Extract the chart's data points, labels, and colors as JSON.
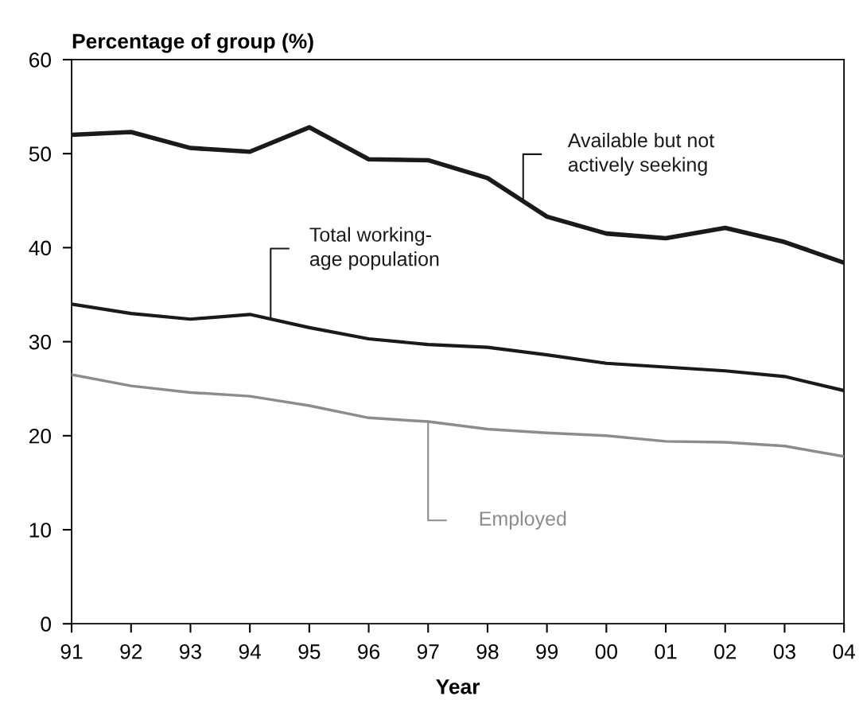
{
  "chart_data": {
    "type": "line",
    "xlabel": "Year",
    "ylabel": "Percentage of group (%)",
    "categories": [
      "91",
      "92",
      "93",
      "94",
      "95",
      "96",
      "97",
      "98",
      "99",
      "00",
      "01",
      "02",
      "03",
      "04"
    ],
    "series": [
      {
        "name": "Available but not\nactively seeking",
        "color": "#1a1a1a",
        "values": [
          52,
          52.3,
          50.6,
          50.2,
          52.8,
          49.4,
          49.3,
          47.4,
          43.3,
          41.5,
          41.0,
          42.1,
          40.6,
          38.4
        ]
      },
      {
        "name": "Total working-\nage population",
        "color": "#1a1a1a",
        "values": [
          34,
          33,
          32.4,
          32.9,
          31.5,
          30.3,
          29.7,
          29.4,
          28.6,
          27.7,
          27.3,
          26.9,
          26.3,
          24.8
        ]
      },
      {
        "name": "Employed",
        "color": "#8c8c8c",
        "values": [
          26.5,
          25.3,
          24.6,
          24.2,
          23.2,
          21.9,
          21.5,
          20.7,
          20.3,
          20.0,
          19.4,
          19.3,
          18.9,
          17.8
        ]
      }
    ],
    "ylim": [
      0,
      60
    ],
    "yticks": [
      0,
      10,
      20,
      30,
      40,
      50,
      60
    ],
    "grid": false,
    "legend": false,
    "marker": "none",
    "line_style": "solid"
  }
}
